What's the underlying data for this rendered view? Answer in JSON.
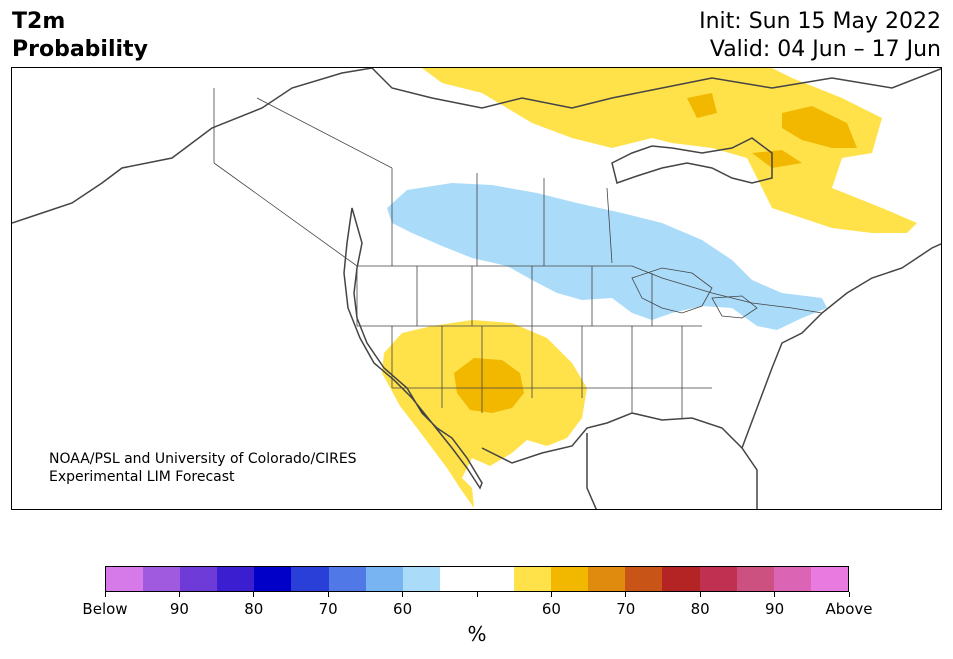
{
  "title": {
    "line1": "T2m",
    "line2": "Probability"
  },
  "dates": {
    "init": "Init: Sun 15 May 2022",
    "valid": "Valid: 04 Jun – 17 Jun"
  },
  "credit": {
    "line1": "NOAA/PSL and University of Colorado/CIRES",
    "line2": "Experimental LIM Forecast"
  },
  "colorbar": {
    "colors": [
      "#d67aea",
      "#a05ae0",
      "#6e3ad8",
      "#3a1ed0",
      "#0000c8",
      "#2a3ed8",
      "#5078e6",
      "#78b4f2",
      "#aadcfa",
      "#ffffff",
      "#ffffff",
      "#ffe14a",
      "#f2b800",
      "#e08a0e",
      "#c85418",
      "#b42424",
      "#c03050",
      "#cc5080",
      "#dc64b4",
      "#e87ae0"
    ],
    "tick_labels": [
      "Below",
      "90",
      "80",
      "70",
      "60",
      "",
      "60",
      "70",
      "80",
      "90",
      "Above"
    ],
    "unit": "%"
  },
  "map_colors": {
    "light_yellow": "#ffe14a",
    "dark_yellow": "#f2b800",
    "light_blue": "#aadcfa",
    "land_line": "#444444"
  }
}
